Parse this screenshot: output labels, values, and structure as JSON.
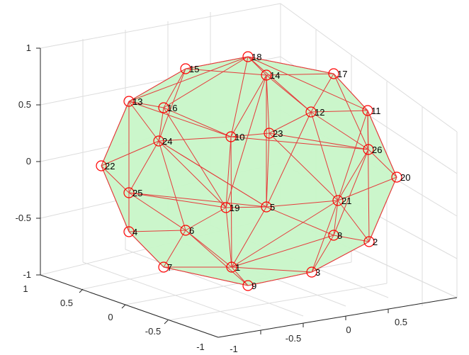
{
  "chart_data": {
    "type": "3d-mesh",
    "title": "",
    "xlabel": "",
    "ylabel": "",
    "zlabel": "",
    "grid": true,
    "face_color": "#c8f5c8",
    "edge_color": "#e53b3b",
    "marker_color": "#ff0000",
    "axes": {
      "z_ticks": [
        "1",
        "0.5",
        "0",
        "-0.5",
        "-1"
      ],
      "y_ticks": [
        "1",
        "0.5",
        "0",
        "-0.5",
        "-1"
      ],
      "x_ticks": [
        "-1",
        "-0.5",
        "0",
        "0.5"
      ]
    },
    "nodes": [
      {
        "id": "1"
      },
      {
        "id": "2"
      },
      {
        "id": "3"
      },
      {
        "id": "4"
      },
      {
        "id": "5"
      },
      {
        "id": "6"
      },
      {
        "id": "7"
      },
      {
        "id": "8"
      },
      {
        "id": "9"
      },
      {
        "id": "10"
      },
      {
        "id": "11"
      },
      {
        "id": "12"
      },
      {
        "id": "13"
      },
      {
        "id": "14"
      },
      {
        "id": "15"
      },
      {
        "id": "16"
      },
      {
        "id": "17"
      },
      {
        "id": "18"
      },
      {
        "id": "19"
      },
      {
        "id": "20"
      },
      {
        "id": "21"
      },
      {
        "id": "22"
      },
      {
        "id": "23"
      },
      {
        "id": "24"
      },
      {
        "id": "25"
      },
      {
        "id": "26"
      }
    ],
    "edges": [
      [
        "18",
        "15"
      ],
      [
        "18",
        "17"
      ],
      [
        "18",
        "14"
      ],
      [
        "18",
        "13"
      ],
      [
        "18",
        "11"
      ],
      [
        "18",
        "16"
      ],
      [
        "18",
        "12"
      ],
      [
        "18",
        "10"
      ],
      [
        "15",
        "13"
      ],
      [
        "15",
        "14"
      ],
      [
        "15",
        "24"
      ],
      [
        "15",
        "16"
      ],
      [
        "17",
        "11"
      ],
      [
        "17",
        "14"
      ],
      [
        "17",
        "12"
      ],
      [
        "17",
        "26"
      ],
      [
        "14",
        "10"
      ],
      [
        "14",
        "12"
      ],
      [
        "14",
        "23"
      ],
      [
        "14",
        "19"
      ],
      [
        "14",
        "5"
      ],
      [
        "13",
        "16"
      ],
      [
        "13",
        "22"
      ],
      [
        "13",
        "24"
      ],
      [
        "13",
        "25"
      ],
      [
        "13",
        "10"
      ],
      [
        "13",
        "4"
      ],
      [
        "16",
        "24"
      ],
      [
        "16",
        "10"
      ],
      [
        "16",
        "19"
      ],
      [
        "11",
        "26"
      ],
      [
        "11",
        "20"
      ],
      [
        "11",
        "12"
      ],
      [
        "11",
        "21"
      ],
      [
        "11",
        "2"
      ],
      [
        "12",
        "23"
      ],
      [
        "12",
        "26"
      ],
      [
        "12",
        "5"
      ],
      [
        "12",
        "21"
      ],
      [
        "10",
        "24"
      ],
      [
        "10",
        "23"
      ],
      [
        "10",
        "26"
      ],
      [
        "10",
        "19"
      ],
      [
        "10",
        "1"
      ],
      [
        "23",
        "26"
      ],
      [
        "23",
        "5"
      ],
      [
        "23",
        "21"
      ],
      [
        "24",
        "22"
      ],
      [
        "24",
        "25"
      ],
      [
        "24",
        "19"
      ],
      [
        "24",
        "6"
      ],
      [
        "24",
        "5"
      ],
      [
        "22",
        "25"
      ],
      [
        "22",
        "4"
      ],
      [
        "26",
        "20"
      ],
      [
        "26",
        "21"
      ],
      [
        "26",
        "8"
      ],
      [
        "25",
        "4"
      ],
      [
        "25",
        "19"
      ],
      [
        "25",
        "6"
      ],
      [
        "25",
        "5"
      ],
      [
        "19",
        "5"
      ],
      [
        "19",
        "1"
      ],
      [
        "19",
        "6"
      ],
      [
        "5",
        "21"
      ],
      [
        "5",
        "1"
      ],
      [
        "5",
        "8"
      ],
      [
        "5",
        "24"
      ],
      [
        "21",
        "20"
      ],
      [
        "21",
        "2"
      ],
      [
        "21",
        "8"
      ],
      [
        "21",
        "1"
      ],
      [
        "21",
        "3"
      ],
      [
        "20",
        "2"
      ],
      [
        "4",
        "6"
      ],
      [
        "4",
        "7"
      ],
      [
        "6",
        "7"
      ],
      [
        "6",
        "1"
      ],
      [
        "6",
        "9"
      ],
      [
        "8",
        "2"
      ],
      [
        "8",
        "3"
      ],
      [
        "8",
        "1"
      ],
      [
        "2",
        "3"
      ],
      [
        "7",
        "1"
      ],
      [
        "7",
        "9"
      ],
      [
        "1",
        "9"
      ],
      [
        "1",
        "3"
      ],
      [
        "9",
        "3"
      ]
    ]
  }
}
